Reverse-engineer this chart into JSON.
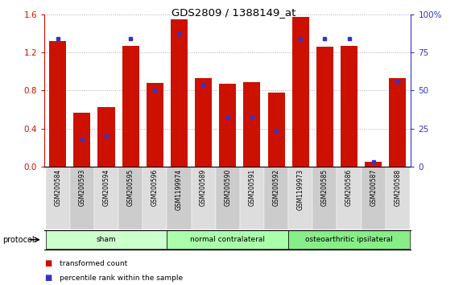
{
  "title": "GDS2809 / 1388149_at",
  "categories": [
    "GSM200584",
    "GSM200593",
    "GSM200594",
    "GSM200595",
    "GSM200596",
    "GSM1199974",
    "GSM200589",
    "GSM200590",
    "GSM200591",
    "GSM200592",
    "GSM1199973",
    "GSM200585",
    "GSM200586",
    "GSM200587",
    "GSM200588"
  ],
  "red_values": [
    1.32,
    0.57,
    0.63,
    1.27,
    0.88,
    1.55,
    0.93,
    0.87,
    0.89,
    0.78,
    1.57,
    1.26,
    1.27,
    0.05,
    0.93
  ],
  "blue_values_pct": [
    84,
    18,
    20,
    84,
    50,
    87,
    54,
    32,
    33,
    24,
    84,
    84,
    84,
    3,
    56
  ],
  "ylim_left": [
    0,
    1.6
  ],
  "ylim_right": [
    0,
    100
  ],
  "yticks_left": [
    0,
    0.4,
    0.8,
    1.2,
    1.6
  ],
  "yticks_right": [
    0,
    25,
    50,
    75,
    100
  ],
  "ytick_labels_right": [
    "0",
    "25",
    "50",
    "75",
    "100%"
  ],
  "bar_color": "#cc1100",
  "dot_color": "#3333cc",
  "groups": [
    {
      "label": "sham",
      "start": 0,
      "end": 5,
      "color": "#ccffcc"
    },
    {
      "label": "normal contralateral",
      "start": 5,
      "end": 10,
      "color": "#aaffaa"
    },
    {
      "label": "osteoarthritic ipsilateral",
      "start": 10,
      "end": 15,
      "color": "#88ee88"
    }
  ],
  "protocol_label": "protocol",
  "legend_items": [
    {
      "label": "transformed count",
      "color": "#cc1100"
    },
    {
      "label": "percentile rank within the sample",
      "color": "#3333cc"
    }
  ],
  "bg_color": "#ffffff",
  "grid_color": "#aaaaaa",
  "label_bg_odd": "#dddddd",
  "label_bg_even": "#cccccc"
}
